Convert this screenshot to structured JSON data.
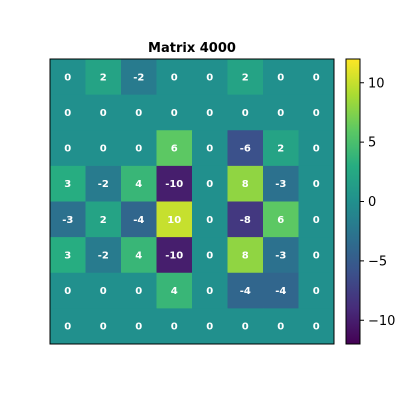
{
  "chart_data": {
    "type": "heatmap",
    "title": "Matrix 4000",
    "xlabel": "",
    "ylabel": "",
    "matrix": [
      [
        0,
        2,
        -2,
        0,
        0,
        2,
        0,
        0
      ],
      [
        0,
        0,
        0,
        0,
        0,
        0,
        0,
        0
      ],
      [
        0,
        0,
        0,
        6,
        0,
        -6,
        2,
        0
      ],
      [
        3,
        -2,
        4,
        -10,
        0,
        8,
        -3,
        0
      ],
      [
        -3,
        2,
        -4,
        10,
        0,
        -8,
        6,
        0
      ],
      [
        3,
        -2,
        4,
        -10,
        0,
        8,
        -3,
        0
      ],
      [
        0,
        0,
        0,
        4,
        0,
        -4,
        -4,
        0
      ],
      [
        0,
        0,
        0,
        0,
        0,
        0,
        0,
        0
      ]
    ],
    "colormap": "viridis",
    "vmin": -12,
    "vmax": 12,
    "colorbar": {
      "ticks": [
        10,
        5,
        0,
        -5,
        -10
      ],
      "tick_labels": [
        "10",
        "5",
        "0",
        "−5",
        "−10"
      ]
    },
    "grid": false,
    "cell_text_color": "#ffffff"
  }
}
